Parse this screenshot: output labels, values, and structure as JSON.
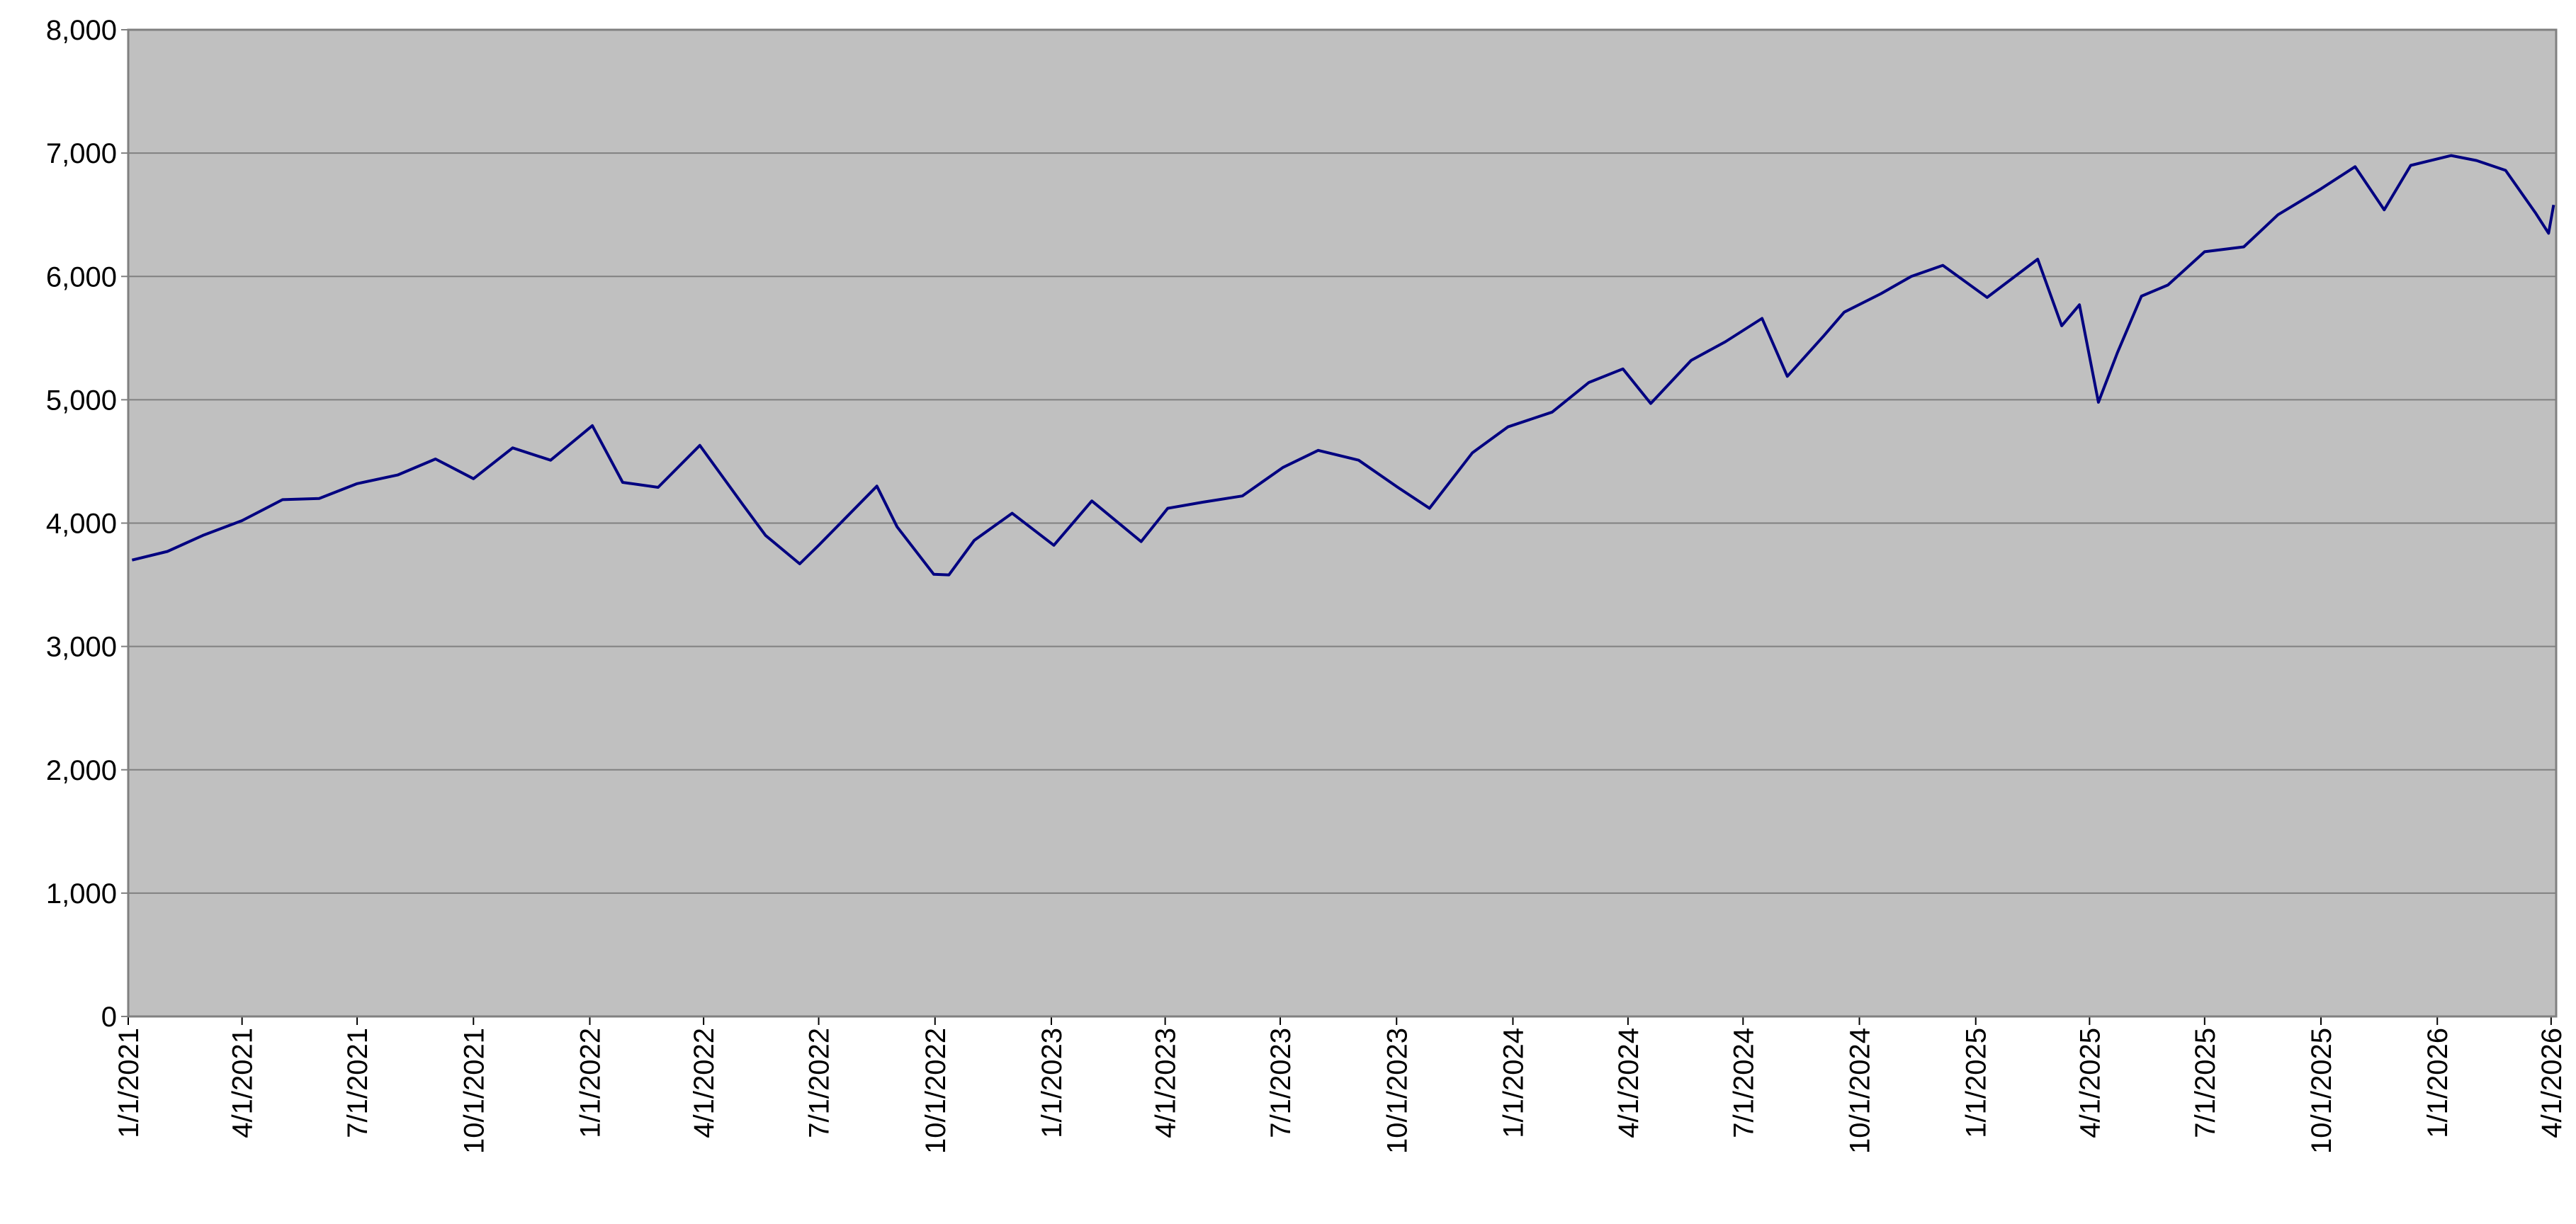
{
  "chart_data": {
    "type": "line",
    "x": [
      "1/4/2021",
      "2/1/2021",
      "3/1/2021",
      "4/1/2021",
      "5/3/2021",
      "6/1/2021",
      "7/1/2021",
      "8/2/2021",
      "9/1/2021",
      "10/1/2021",
      "11/1/2021",
      "12/1/2021",
      "1/3/2022",
      "1/27/2022",
      "2/24/2022",
      "3/29/2022",
      "5/2/2022",
      "5/20/2022",
      "6/16/2022",
      "7/1/2022",
      "8/16/2022",
      "9/1/2022",
      "9/30/2022",
      "10/12/2022",
      "11/1/2022",
      "12/1/2022",
      "1/3/2023",
      "2/2/2023",
      "3/13/2023",
      "4/3/2023",
      "5/1/2023",
      "6/1/2023",
      "7/3/2023",
      "7/31/2023",
      "9/1/2023",
      "10/2/2023",
      "10/27/2023",
      "11/30/2023",
      "12/28/2023",
      "2/1/2024",
      "3/1/2024",
      "3/28/2024",
      "4/19/2024",
      "5/21/2024",
      "6/17/2024",
      "7/16/2024",
      "8/5/2024",
      "9/3/2024",
      "9/19/2024",
      "10/18/2024",
      "11/11/2024",
      "12/6/2024",
      "1/10/2025",
      "2/19/2025",
      "3/10/2025",
      "3/24/2025",
      "4/8/2025",
      "4/23/2025",
      "5/12/2025",
      "6/2/2025",
      "7/1/2025",
      "8/1/2025",
      "8/28/2025",
      "10/1/2025",
      "10/28/2025",
      "11/20/2025",
      "12/11/2025",
      "1/12/2026",
      "2/1/2026",
      "2/24/2026",
      "3/20/2026",
      "3/30/2026",
      "4/3/2026"
    ],
    "series": [
      {
        "color": "#000080",
        "values": [
          3700,
          3770,
          3900,
          4020,
          4190,
          4200,
          4320,
          4390,
          4520,
          4360,
          4610,
          4510,
          4790,
          4330,
          4290,
          4630,
          4150,
          3900,
          3670,
          3820,
          4300,
          3970,
          3585,
          3580,
          3860,
          4080,
          3820,
          4180,
          3850,
          4120,
          4170,
          4220,
          4450,
          4590,
          4510,
          4290,
          4120,
          4570,
          4780,
          4900,
          5140,
          5250,
          4970,
          5320,
          5470,
          5660,
          5190,
          5520,
          5710,
          5860,
          6000,
          6090,
          5830,
          6140,
          5600,
          5770,
          4980,
          5380,
          5840,
          5930,
          6200,
          6240,
          6500,
          6710,
          6890,
          6540,
          6900,
          6980,
          6940,
          6860,
          6510,
          6350,
          6580
        ]
      }
    ],
    "xlim": [
      "1/1/2021",
      "4/5/2026"
    ],
    "xticks": [
      "1/1/2021",
      "4/1/2021",
      "7/1/2021",
      "10/1/2021",
      "1/1/2022",
      "4/1/2022",
      "7/1/2022",
      "10/1/2022",
      "1/1/2023",
      "4/1/2023",
      "7/1/2023",
      "10/1/2023",
      "1/1/2024",
      "4/1/2024",
      "7/1/2024",
      "10/1/2024",
      "1/1/2025",
      "4/1/2025",
      "7/1/2025",
      "10/1/2025",
      "1/1/2026",
      "4/1/2026"
    ],
    "ylim": [
      0,
      8000
    ],
    "yticks": [
      0,
      {
        "value": 1000,
        "label": "1,000"
      },
      {
        "value": 2000,
        "label": "2,000"
      },
      {
        "value": 3000,
        "label": "3,000"
      },
      {
        "value": 4000,
        "label": "4,000"
      },
      {
        "value": 5000,
        "label": "5,000"
      },
      {
        "value": 6000,
        "label": "6,000"
      },
      {
        "value": 7000,
        "label": "7,000"
      },
      {
        "value": 8000,
        "label": "8,000"
      }
    ],
    "grid": true,
    "background": "#c0c0c0"
  }
}
